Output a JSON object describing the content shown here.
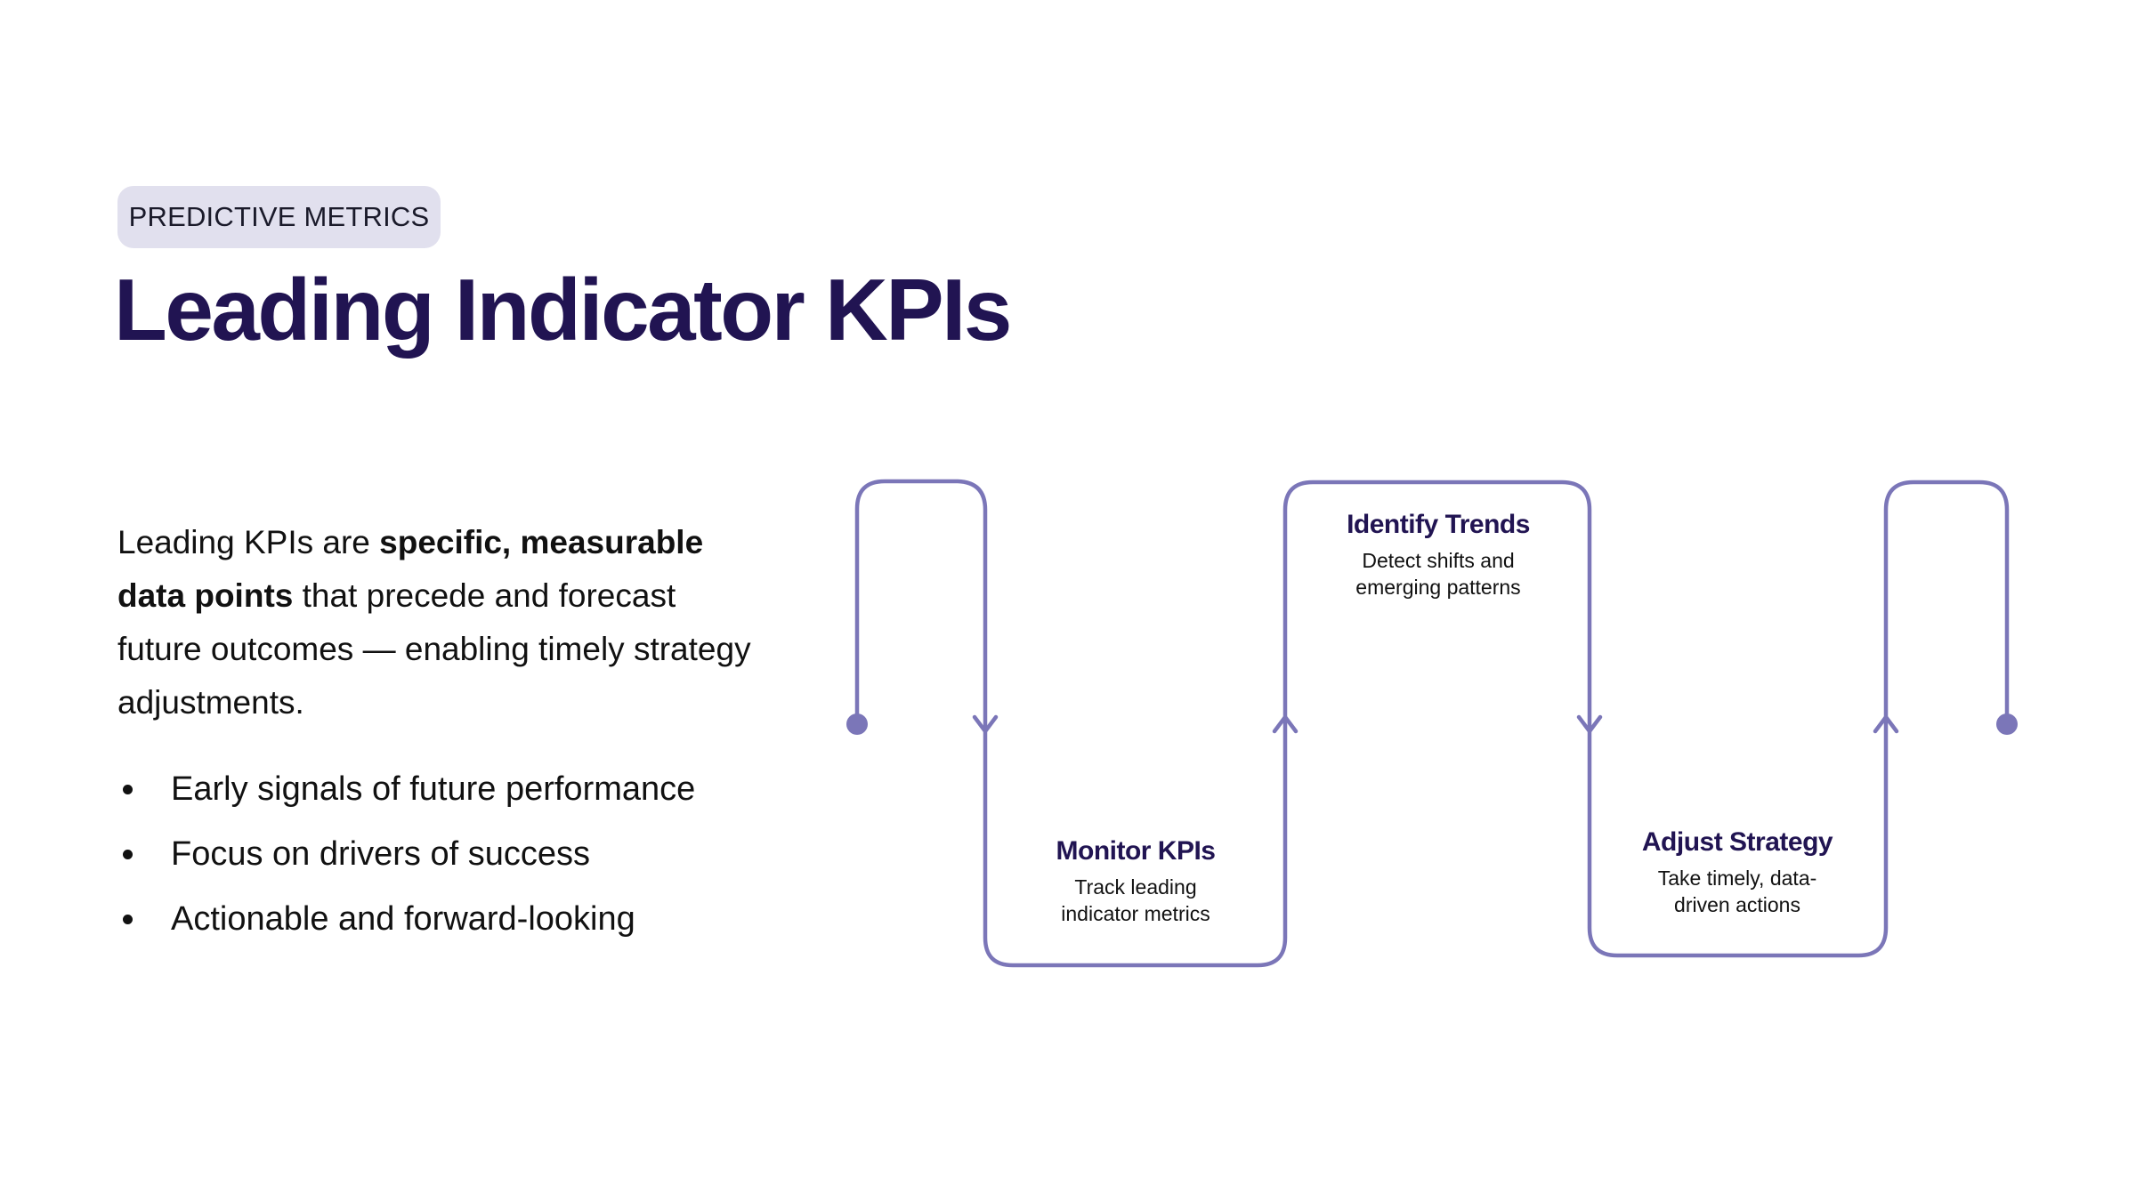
{
  "tag": "PREDICTIVE METRICS",
  "title": "Leading Indicator KPIs",
  "intro": {
    "before": "Leading KPIs are ",
    "bold": "specific, measurable data points",
    "after": " that precede and forecast future outcomes — enabling timely strategy adjustments."
  },
  "bullets": [
    "Early signals of future performance",
    "Focus on drivers of success",
    "Actionable and forward-looking"
  ],
  "steps": [
    {
      "title": "Monitor KPIs",
      "line1": "Track leading",
      "line2": "indicator metrics"
    },
    {
      "title": "Identify Trends",
      "line1": "Detect shifts and",
      "line2": "emerging patterns"
    },
    {
      "title": "Adjust Strategy",
      "line1": "Take timely, data-",
      "line2": "driven actions"
    }
  ],
  "colors": {
    "accent": "#7b76b8",
    "heading": "#211452",
    "pill_bg": "#e1e0ee"
  }
}
